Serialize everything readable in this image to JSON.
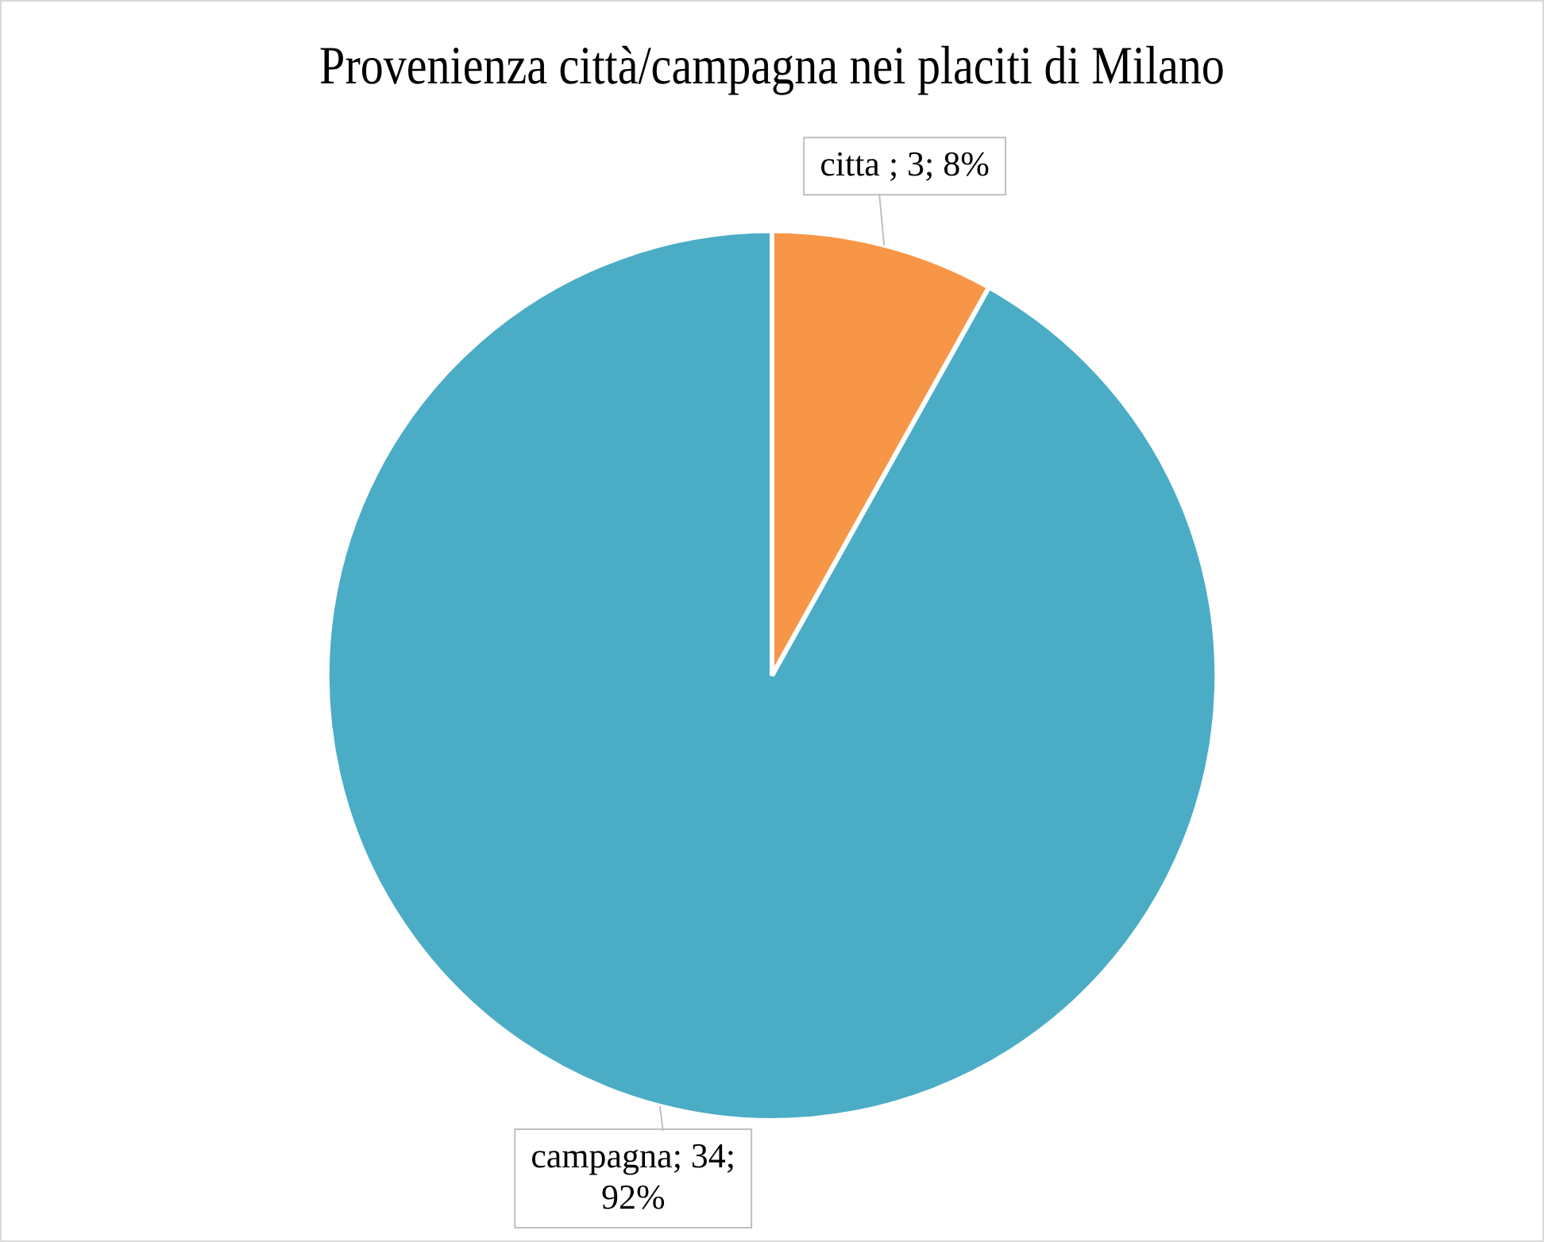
{
  "chart_data": {
    "type": "pie",
    "title": "Provenienza città/campagna nei placiti di Milano",
    "categories": [
      "citta ",
      "campagna"
    ],
    "values": [
      3,
      34
    ],
    "colors": [
      "#f79646",
      "#4bacc6"
    ],
    "value_labels": [
      "3; 8%",
      "34; 92%"
    ],
    "legend": false
  }
}
